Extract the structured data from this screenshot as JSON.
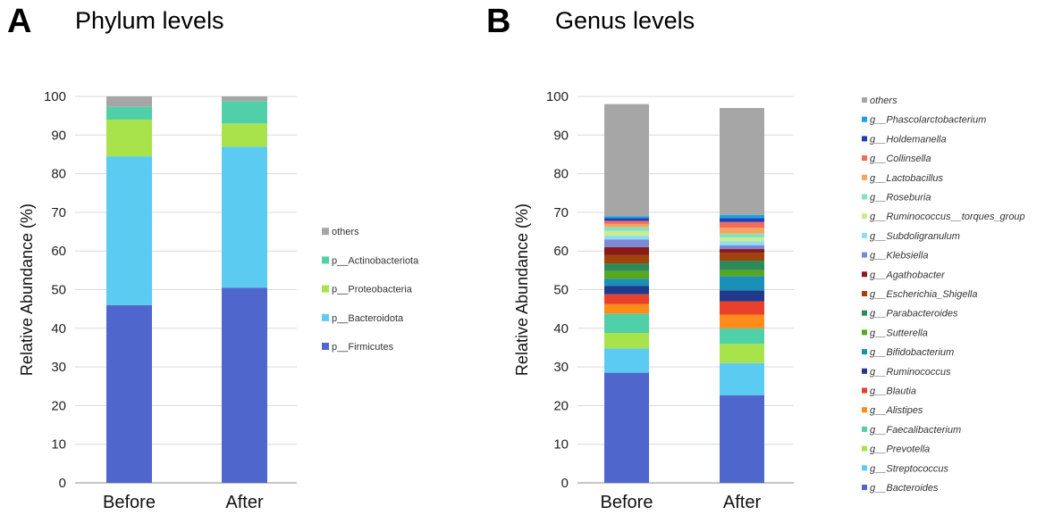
{
  "chart_data": [
    {
      "type": "bar",
      "stacked": true,
      "panel_letter": "A",
      "title": "Phylum levels",
      "xlabel": "",
      "ylabel": "Relative Abundance (%)",
      "ylim": [
        0,
        100
      ],
      "yticks": [
        "0",
        "10",
        "20",
        "30",
        "40",
        "50",
        "60",
        "70",
        "80",
        "90",
        "100"
      ],
      "categories": [
        "Before",
        "After"
      ],
      "legend_italic": false,
      "series": [
        {
          "name": "p__Firmicutes",
          "color": "#4F66CC",
          "values": [
            46.0,
            50.5
          ]
        },
        {
          "name": "p__Bacteroidota",
          "color": "#5BCBF2",
          "values": [
            38.5,
            36.5
          ]
        },
        {
          "name": "p__Proteobacteria",
          "color": "#A9E34B",
          "values": [
            9.5,
            6.0
          ]
        },
        {
          "name": "p__Actinobacteriota",
          "color": "#4FD0A8",
          "values": [
            3.3,
            5.8
          ]
        },
        {
          "name": "others",
          "color": "#A6A6A6",
          "values": [
            2.7,
            1.2
          ]
        }
      ]
    },
    {
      "type": "bar",
      "stacked": true,
      "panel_letter": "B",
      "title": "Genus levels",
      "xlabel": "",
      "ylabel": "Relative Abundance (%)",
      "ylim": [
        0,
        100
      ],
      "yticks": [
        "0",
        "10",
        "20",
        "30",
        "40",
        "50",
        "60",
        "70",
        "80",
        "90",
        "100"
      ],
      "categories": [
        "Before",
        "After"
      ],
      "legend_italic": true,
      "series": [
        {
          "name": "g__Bacteroides",
          "color": "#4F66CC",
          "values": [
            28.5,
            22.7
          ]
        },
        {
          "name": "g__Streptococcus",
          "color": "#5BCBF2",
          "values": [
            6.3,
            8.3
          ]
        },
        {
          "name": "g__Prevotella",
          "color": "#A9E34B",
          "values": [
            4.0,
            5.0
          ]
        },
        {
          "name": "g__Faecalibacterium",
          "color": "#4FD0A8",
          "values": [
            5.0,
            4.0
          ]
        },
        {
          "name": "g__Alistipes",
          "color": "#FF8C1A",
          "values": [
            2.5,
            3.5
          ]
        },
        {
          "name": "g__Blautia",
          "color": "#E8402A",
          "values": [
            2.5,
            3.5
          ]
        },
        {
          "name": "g__Ruminococcus",
          "color": "#1F3A8A",
          "values": [
            2.2,
            2.8
          ]
        },
        {
          "name": "g__Bifidobacterium",
          "color": "#1A8FB8",
          "values": [
            1.8,
            3.7
          ]
        },
        {
          "name": "g__Sutterella",
          "color": "#58A81E",
          "values": [
            2.0,
            1.5
          ]
        },
        {
          "name": "g__Parabacteroides",
          "color": "#2E8B57",
          "values": [
            2.0,
            2.5
          ]
        },
        {
          "name": "g__Escherichia_Shigella",
          "color": "#A0430A",
          "values": [
            2.2,
            2.0
          ]
        },
        {
          "name": "g__Agathobacter",
          "color": "#8B1A1A",
          "values": [
            2.0,
            1.0
          ]
        },
        {
          "name": "g__Klebsiella",
          "color": "#7B89D6",
          "values": [
            2.0,
            1.0
          ]
        },
        {
          "name": "g__Subdoligranulum",
          "color": "#8FDDF5",
          "values": [
            1.0,
            1.0
          ]
        },
        {
          "name": "g__Ruminococcus__torques_group",
          "color": "#C8EE8A",
          "values": [
            1.2,
            1.0
          ]
        },
        {
          "name": "g__Roseburia",
          "color": "#86E0C6",
          "values": [
            1.0,
            1.0
          ]
        },
        {
          "name": "g__Lactobacillus",
          "color": "#F7A35C",
          "values": [
            0.8,
            1.5
          ]
        },
        {
          "name": "g__Collinsella",
          "color": "#F26B5B",
          "values": [
            0.8,
            1.5
          ]
        },
        {
          "name": "g__Holdemanella",
          "color": "#1F3FB8",
          "values": [
            0.7,
            1.0
          ]
        },
        {
          "name": "g__Phascolarctobacterium",
          "color": "#1AA3E0",
          "values": [
            0.5,
            0.8
          ]
        },
        {
          "name": "others",
          "color": "#A6A6A6",
          "values": [
            29.0,
            27.7
          ]
        }
      ]
    }
  ]
}
